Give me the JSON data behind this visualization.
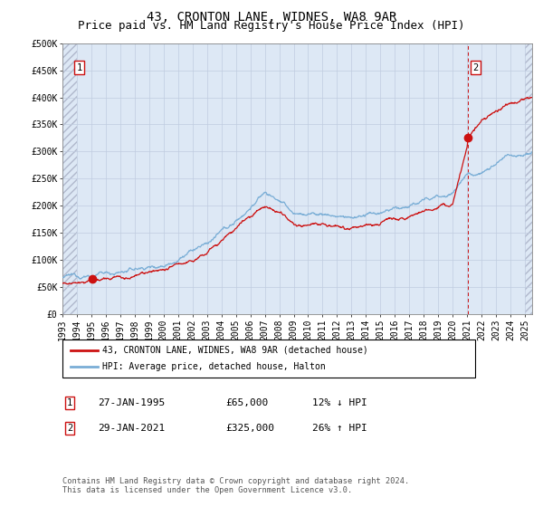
{
  "title": "43, CRONTON LANE, WIDNES, WA8 9AR",
  "subtitle": "Price paid vs. HM Land Registry's House Price Index (HPI)",
  "ylabel_ticks": [
    "£0",
    "£50K",
    "£100K",
    "£150K",
    "£200K",
    "£250K",
    "£300K",
    "£350K",
    "£400K",
    "£450K",
    "£500K"
  ],
  "ytick_values": [
    0,
    50000,
    100000,
    150000,
    200000,
    250000,
    300000,
    350000,
    400000,
    450000,
    500000
  ],
  "ylim": [
    0,
    500000
  ],
  "xlim_start": 1993.0,
  "xlim_end": 2025.5,
  "hpi_color": "#7aaed6",
  "price_color": "#cc1111",
  "marker1_date": 1995.07,
  "marker1_price": 65000,
  "marker2_date": 2021.07,
  "marker2_price": 325000,
  "annotation1_label": "1",
  "annotation2_label": "2",
  "legend_line1": "43, CRONTON LANE, WIDNES, WA8 9AR (detached house)",
  "legend_line2": "HPI: Average price, detached house, Halton",
  "note1_label": "1",
  "note1_date": "27-JAN-1995",
  "note1_price": "£65,000",
  "note1_hpi": "12% ↓ HPI",
  "note2_label": "2",
  "note2_date": "29-JAN-2021",
  "note2_price": "£325,000",
  "note2_hpi": "26% ↑ HPI",
  "footer": "Contains HM Land Registry data © Crown copyright and database right 2024.\nThis data is licensed under the Open Government Licence v3.0.",
  "plot_bg_color": "#dde8f5",
  "hatch_color": "#b0b8cc",
  "grid_color": "#c0cce0",
  "title_fontsize": 10,
  "subtitle_fontsize": 9,
  "axis_fontsize": 7,
  "xtick_years": [
    1993,
    1994,
    1995,
    1996,
    1997,
    1998,
    1999,
    2000,
    2001,
    2002,
    2003,
    2004,
    2005,
    2006,
    2007,
    2008,
    2009,
    2010,
    2011,
    2012,
    2013,
    2014,
    2015,
    2016,
    2017,
    2018,
    2019,
    2020,
    2021,
    2022,
    2023,
    2024,
    2025
  ]
}
